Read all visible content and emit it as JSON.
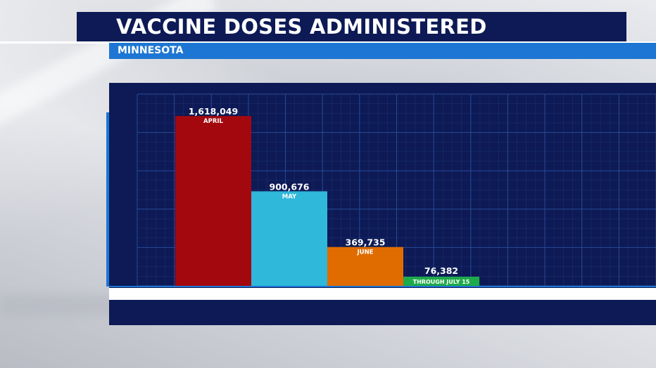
{
  "header": {
    "title": "VACCINE DOSES ADMINISTERED",
    "subtitle": "MINNESOTA"
  },
  "colors": {
    "navy": "#0d1a55",
    "accent_blue": "#1d76d3",
    "grid": "#2d4f9e"
  },
  "chart_data": {
    "type": "bar",
    "title": "VACCINE DOSES ADMINISTERED",
    "subtitle": "MINNESOTA",
    "categories": [
      "APRIL",
      "MAY",
      "JUNE",
      "THROUGH JULY 15"
    ],
    "values": [
      1618049,
      900676,
      369735,
      76382
    ],
    "value_labels": [
      "1,618,049",
      "900,676",
      "369,735",
      "76,382"
    ],
    "colors": [
      "#a4080f",
      "#2fb8d9",
      "#e06c00",
      "#1faa4a"
    ],
    "xlabel": "",
    "ylabel": "",
    "ylim": [
      0,
      1800000
    ],
    "grid": true,
    "legend": "none"
  }
}
